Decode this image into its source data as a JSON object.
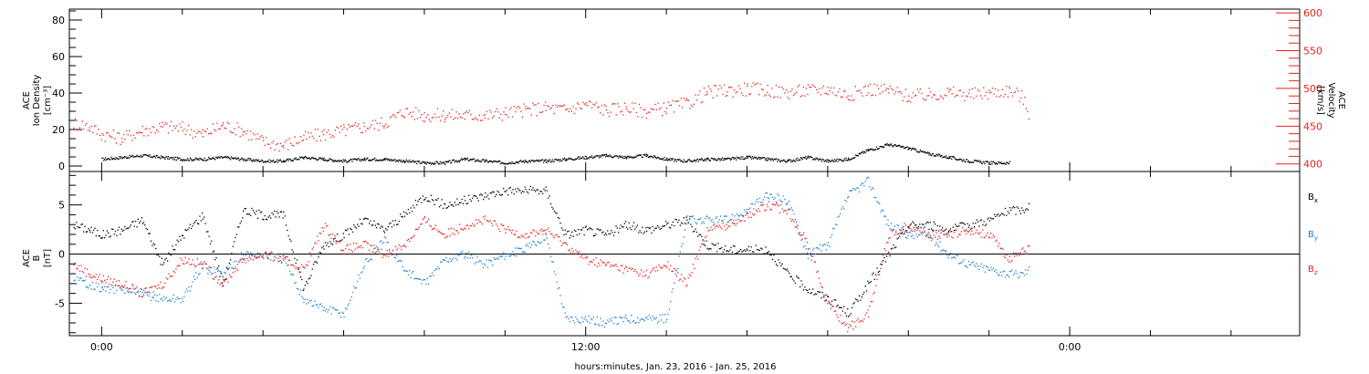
{
  "x_axis": {
    "label": "hours:minutes, Jan. 23, 2016 - Jan. 25, 2016",
    "range_hours": [
      -0.8,
      29.7
    ],
    "ticks": [
      {
        "hour": 0,
        "label": "0:00"
      },
      {
        "hour": 12,
        "label": "12:00"
      },
      {
        "hour": 24,
        "label": "0:00"
      }
    ]
  },
  "chart_data": [
    {
      "type": "scatter",
      "panel": "density-velocity",
      "ylabel": [
        "ACE",
        "Ion Density",
        "[cm⁻³]"
      ],
      "y2label": [
        "ACE",
        "Velocity",
        "[km/s]"
      ],
      "ylim": [
        -3,
        86
      ],
      "y2lim": [
        390,
        605
      ],
      "yticks": [
        0,
        20,
        40,
        60,
        80
      ],
      "y2ticks": [
        400,
        450,
        500,
        550,
        600
      ],
      "series": [
        {
          "key": "density",
          "color": "#000000",
          "axis": "left",
          "x": [
            0.0,
            0.5,
            1.0,
            1.5,
            2.0,
            2.5,
            3.0,
            3.5,
            4.0,
            4.5,
            5.0,
            5.5,
            6.0,
            6.5,
            7.0,
            7.5,
            8.0,
            8.5,
            9.0,
            9.5,
            10.0,
            10.5,
            11.0,
            11.5,
            12.0,
            12.5,
            13.0,
            13.5,
            14.0,
            14.5,
            15.0,
            15.5,
            16.0,
            16.5,
            17.0,
            17.5,
            18.0,
            18.5,
            19.0,
            19.5,
            20.0,
            20.5,
            21.0,
            21.5,
            22.0,
            22.5
          ],
          "y": [
            4,
            5,
            6,
            5,
            4,
            4,
            5,
            4,
            3,
            3,
            5,
            4,
            3,
            4,
            4,
            3,
            2,
            2,
            4,
            3,
            2,
            3,
            3,
            4,
            5,
            6,
            5,
            6,
            4,
            3,
            4,
            4,
            5,
            4,
            3,
            5,
            3,
            4,
            9,
            12,
            10,
            7,
            5,
            3,
            2,
            2
          ]
        },
        {
          "key": "velocity",
          "color": "#e8211c",
          "axis": "right",
          "x": [
            -0.7,
            -0.3,
            0.0,
            0.5,
            1.0,
            1.5,
            2.0,
            2.5,
            3.0,
            3.5,
            4.0,
            4.5,
            5.0,
            5.5,
            6.0,
            6.5,
            7.0,
            7.5,
            8.0,
            8.5,
            9.0,
            9.5,
            10.0,
            10.5,
            11.0,
            11.5,
            12.0,
            12.5,
            13.0,
            13.5,
            14.0,
            14.5,
            15.0,
            15.5,
            16.0,
            16.5,
            17.0,
            17.5,
            18.0,
            18.5,
            19.0,
            19.5,
            20.0,
            20.5,
            21.0,
            21.5,
            22.0,
            22.5,
            22.8,
            23.0
          ],
          "y": [
            455,
            450,
            440,
            435,
            445,
            450,
            448,
            440,
            452,
            445,
            430,
            425,
            435,
            440,
            445,
            450,
            455,
            470,
            465,
            465,
            465,
            465,
            468,
            472,
            475,
            472,
            480,
            472,
            475,
            470,
            475,
            480,
            495,
            498,
            500,
            498,
            495,
            498,
            500,
            492,
            500,
            498,
            490,
            492,
            495,
            492,
            495,
            498,
            490,
            465
          ]
        }
      ]
    },
    {
      "type": "scatter",
      "panel": "magnetic-field",
      "ylabel": [
        "ACE",
        "B",
        "[nT]"
      ],
      "ylim": [
        -8.3,
        8.4
      ],
      "yticks": [
        -5,
        0,
        5
      ],
      "zero_line": true,
      "series": [
        {
          "key": "bx",
          "name": "Bx",
          "color": "#000000",
          "x": [
            -0.7,
            -0.3,
            0.0,
            0.5,
            1.0,
            1.5,
            2.0,
            2.5,
            3.0,
            3.5,
            4.0,
            4.5,
            5.0,
            5.5,
            6.0,
            6.5,
            7.0,
            7.5,
            8.0,
            8.5,
            9.0,
            9.5,
            10.0,
            10.5,
            11.0,
            11.5,
            12.0,
            12.5,
            13.0,
            13.5,
            14.0,
            14.5,
            15.0,
            15.5,
            16.0,
            16.5,
            17.0,
            17.5,
            18.0,
            18.5,
            19.0,
            19.5,
            20.0,
            20.5,
            21.0,
            21.5,
            22.0,
            22.5,
            22.8,
            23.0
          ],
          "y": [
            3.0,
            2.5,
            2.0,
            2.5,
            3.5,
            -1.0,
            2.0,
            4.0,
            -3.0,
            4.5,
            4.0,
            4.0,
            -3.5,
            1.0,
            2.0,
            3.5,
            2.5,
            4.0,
            6.0,
            5.0,
            5.5,
            6.0,
            6.5,
            6.5,
            6.5,
            2.0,
            2.5,
            2.0,
            3.0,
            2.5,
            3.0,
            3.5,
            1.0,
            0.5,
            0.5,
            0.5,
            -2.0,
            -3.5,
            -4.5,
            -6.0,
            -3.0,
            0.0,
            3.0,
            3.0,
            2.5,
            3.0,
            3.5,
            4.5,
            4.5,
            5.0
          ]
        },
        {
          "key": "by",
          "name": "By",
          "color": "#1a7fd6",
          "x": [
            -0.7,
            -0.3,
            0.0,
            0.5,
            1.0,
            1.5,
            2.0,
            2.5,
            3.0,
            3.5,
            4.0,
            4.5,
            5.0,
            5.5,
            6.0,
            6.5,
            7.0,
            7.5,
            8.0,
            8.5,
            9.0,
            9.5,
            10.0,
            10.5,
            11.0,
            11.5,
            12.0,
            12.5,
            13.0,
            13.5,
            14.0,
            14.5,
            15.0,
            15.5,
            16.0,
            16.5,
            17.0,
            17.5,
            18.0,
            18.5,
            19.0,
            19.5,
            20.0,
            20.5,
            21.0,
            21.5,
            22.0,
            22.5,
            22.8,
            23.0
          ],
          "y": [
            -2.5,
            -3.0,
            -3.5,
            -3.5,
            -4.0,
            -4.5,
            -4.5,
            -1.0,
            -2.0,
            0.0,
            0.0,
            -0.5,
            -4.5,
            -5.5,
            -6.0,
            -1.0,
            1.5,
            -1.5,
            -3.0,
            -0.5,
            0.0,
            -1.0,
            0.0,
            0.5,
            2.0,
            -6.5,
            -6.5,
            -7.0,
            -6.5,
            -6.5,
            -6.5,
            3.5,
            3.5,
            3.5,
            4.5,
            6.0,
            5.5,
            0.0,
            1.0,
            6.0,
            7.5,
            3.0,
            2.0,
            2.0,
            0.0,
            -1.0,
            -1.5,
            -2.0,
            -2.0,
            -1.5
          ]
        },
        {
          "key": "bz",
          "name": "Bz",
          "color": "#e8211c",
          "x": [
            -0.7,
            -0.3,
            0.0,
            0.5,
            1.0,
            1.5,
            2.0,
            2.5,
            3.0,
            3.5,
            4.0,
            4.5,
            5.0,
            5.5,
            6.0,
            6.5,
            7.0,
            7.5,
            8.0,
            8.5,
            9.0,
            9.5,
            10.0,
            10.5,
            11.0,
            11.5,
            12.0,
            12.5,
            13.0,
            13.5,
            14.0,
            14.5,
            15.0,
            15.5,
            16.0,
            16.5,
            17.0,
            17.5,
            18.0,
            18.5,
            19.0,
            19.5,
            20.0,
            20.5,
            21.0,
            21.5,
            22.0,
            22.5,
            22.8,
            23.0
          ],
          "y": [
            -1.0,
            -2.0,
            -2.5,
            -3.0,
            -4.0,
            -3.0,
            -0.5,
            -1.0,
            -3.0,
            -0.5,
            0.0,
            -0.5,
            -1.5,
            3.0,
            0.5,
            1.0,
            0.0,
            1.0,
            3.5,
            2.0,
            3.0,
            3.5,
            2.5,
            2.0,
            2.5,
            1.0,
            -0.5,
            -1.0,
            -1.5,
            -2.0,
            -1.0,
            -3.0,
            2.5,
            3.0,
            4.0,
            5.0,
            4.5,
            1.0,
            -5.0,
            -7.5,
            -6.0,
            2.0,
            3.0,
            2.0,
            2.0,
            2.5,
            2.0,
            -0.5,
            0.5,
            0.5
          ]
        }
      ]
    }
  ]
}
